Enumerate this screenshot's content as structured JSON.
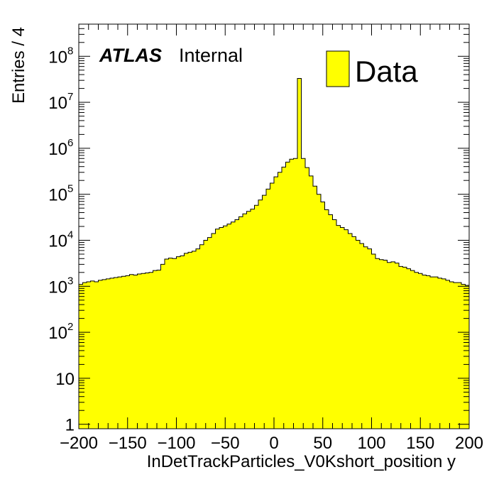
{
  "chart_data": {
    "type": "bar",
    "histogram": true,
    "log_y": true,
    "x_range": [
      -200,
      200
    ],
    "y_range": [
      0.8,
      500000000
    ],
    "xlabel": "InDetTrackParticles_V0Kshort_position y",
    "ylabel": "Entries / 4",
    "x_ticks": [
      "−200",
      "−150",
      "−100",
      "−50",
      "0",
      "50",
      "100",
      "150",
      "200"
    ],
    "y_ticks": [
      {
        "base": "1",
        "exp": ""
      },
      {
        "base": "10",
        "exp": ""
      },
      {
        "base": "10",
        "exp": "2"
      },
      {
        "base": "10",
        "exp": "3"
      },
      {
        "base": "10",
        "exp": "4"
      },
      {
        "base": "10",
        "exp": "5"
      },
      {
        "base": "10",
        "exp": "6"
      },
      {
        "base": "10",
        "exp": "7"
      },
      {
        "base": "10",
        "exp": "8"
      }
    ],
    "atlas_label": "ATLAS",
    "atlas_status": "Internal",
    "legend": [
      {
        "name": "Data",
        "color": "#ffff00"
      }
    ],
    "fill_color": "#ffff00",
    "bin_width": 4,
    "series": [
      {
        "name": "Data",
        "bins_low_edge": [
          -200,
          -196,
          -192,
          -188,
          -184,
          -180,
          -176,
          -172,
          -168,
          -164,
          -160,
          -156,
          -152,
          -148,
          -144,
          -140,
          -136,
          -132,
          -128,
          -124,
          -120,
          -116,
          -112,
          -108,
          -104,
          -100,
          -96,
          -92,
          -88,
          -84,
          -80,
          -76,
          -72,
          -68,
          -64,
          -60,
          -56,
          -52,
          -48,
          -44,
          -40,
          -36,
          -32,
          -28,
          -24,
          -20,
          -16,
          -12,
          -8,
          -4,
          0,
          4,
          8,
          12,
          16,
          20,
          24,
          28,
          32,
          36,
          40,
          44,
          48,
          52,
          56,
          60,
          64,
          68,
          72,
          76,
          80,
          84,
          88,
          92,
          96,
          100,
          104,
          108,
          112,
          116,
          120,
          124,
          128,
          132,
          136,
          140,
          144,
          148,
          152,
          156,
          160,
          164,
          168,
          172,
          176,
          180,
          184,
          188,
          192,
          196
        ],
        "values": [
          1100,
          1200,
          1250,
          1300,
          1250,
          1350,
          1400,
          1450,
          1500,
          1550,
          1600,
          1650,
          1700,
          1800,
          1750,
          1850,
          1900,
          1950,
          2000,
          2200,
          2250,
          3000,
          3900,
          4100,
          4000,
          4400,
          4600,
          5200,
          5500,
          5800,
          6500,
          8000,
          10000,
          11500,
          14000,
          17500,
          19000,
          20500,
          22500,
          25000,
          28000,
          32500,
          37500,
          42500,
          47500,
          57500,
          75000,
          95000,
          130000,
          175000,
          240000,
          300000,
          390000,
          500000,
          580000,
          600000,
          33000000,
          600000,
          380000,
          250000,
          150000,
          100000,
          68000,
          46000,
          36000,
          28000,
          21000,
          19000,
          17000,
          14000,
          12000,
          10000,
          8500,
          7200,
          6500,
          5000,
          4000,
          3800,
          3700,
          3300,
          3400,
          3200,
          2700,
          2600,
          2400,
          2200,
          2000,
          1900,
          1750,
          1700,
          1600,
          1600,
          1500,
          1450,
          1350,
          1250,
          1200,
          1200,
          1100,
          1050
        ]
      }
    ]
  }
}
